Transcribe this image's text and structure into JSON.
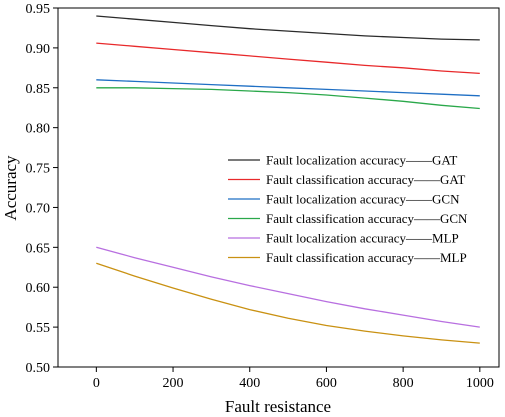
{
  "chart_data": {
    "type": "line",
    "title": "",
    "xlabel": "Fault resistance",
    "ylabel": "Accuracy",
    "xlim": [
      -100,
      1050
    ],
    "ylim": [
      0.5,
      0.95
    ],
    "xticks": [
      0,
      200,
      400,
      600,
      800,
      1000
    ],
    "yticks": [
      0.5,
      0.55,
      0.6,
      0.65,
      0.7,
      0.75,
      0.8,
      0.85,
      0.9,
      0.95
    ],
    "xtick_labels": [
      "0",
      "200",
      "400",
      "600",
      "800",
      "1000"
    ],
    "ytick_labels": [
      "0.50",
      "0.55",
      "0.60",
      "0.65",
      "0.70",
      "0.75",
      "0.80",
      "0.85",
      "0.90",
      "0.95"
    ],
    "grid": false,
    "legend_position": "center-right",
    "x": [
      0,
      100,
      200,
      300,
      400,
      500,
      600,
      700,
      800,
      900,
      1000
    ],
    "series": [
      {
        "name": "Fault localization accuracy——GAT",
        "color": "#2b2b2b",
        "values": [
          0.94,
          0.936,
          0.932,
          0.928,
          0.924,
          0.921,
          0.918,
          0.915,
          0.913,
          0.911,
          0.91
        ]
      },
      {
        "name": "Fault classification accuracy——GAT",
        "color": "#e8292b",
        "values": [
          0.906,
          0.902,
          0.898,
          0.894,
          0.89,
          0.886,
          0.882,
          0.878,
          0.875,
          0.871,
          0.868
        ]
      },
      {
        "name": "Fault localization accuracy——GCN",
        "color": "#1f6fc4",
        "values": [
          0.86,
          0.858,
          0.856,
          0.854,
          0.852,
          0.85,
          0.848,
          0.846,
          0.844,
          0.842,
          0.84
        ]
      },
      {
        "name": "Fault classification accuracy——GCN",
        "color": "#2aa84a",
        "values": [
          0.85,
          0.85,
          0.849,
          0.848,
          0.846,
          0.844,
          0.841,
          0.837,
          0.833,
          0.828,
          0.824
        ]
      },
      {
        "name": "Fault localization accuracy——MLP",
        "color": "#b86fe0",
        "values": [
          0.65,
          0.637,
          0.625,
          0.613,
          0.602,
          0.592,
          0.582,
          0.573,
          0.565,
          0.557,
          0.55
        ]
      },
      {
        "name": "Fault classification accuracy——MLP",
        "color": "#c99112",
        "values": [
          0.63,
          0.614,
          0.599,
          0.585,
          0.572,
          0.561,
          0.552,
          0.545,
          0.539,
          0.534,
          0.53
        ]
      }
    ]
  }
}
